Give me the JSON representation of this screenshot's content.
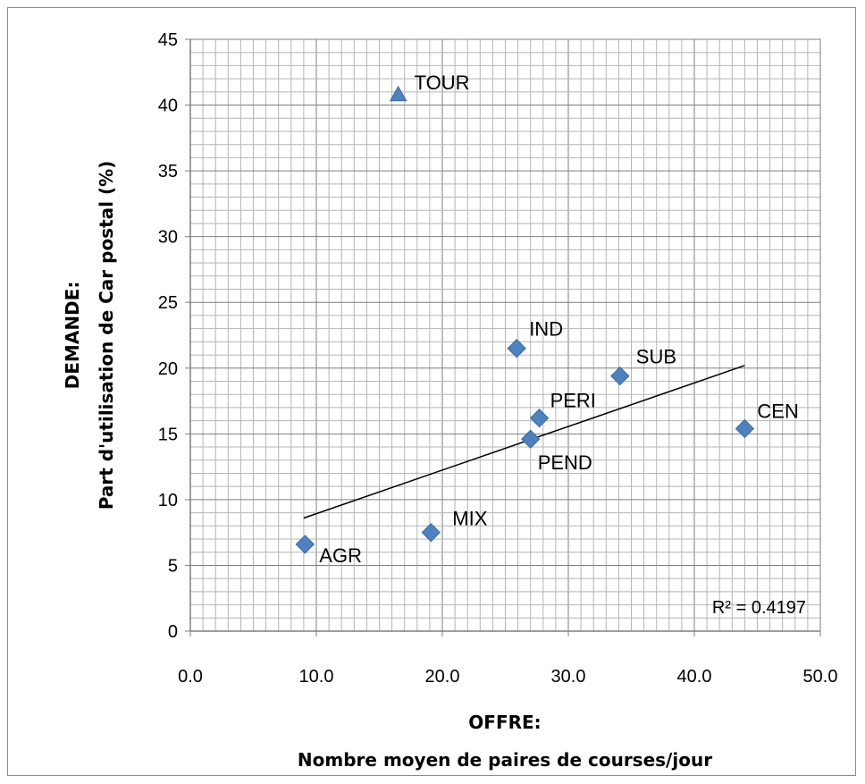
{
  "chart_data": {
    "type": "scatter",
    "xlabel_line1": "OFFRE:",
    "xlabel_line2": "Nombre moyen de paires de courses/jour",
    "ylabel_line1": "DEMANDE:",
    "ylabel_line2": "Part d'utilisation de Car postal (%)",
    "xlim": [
      0,
      50
    ],
    "ylim": [
      0,
      45
    ],
    "x_ticks": [
      "0.0",
      "10.0",
      "20.0",
      "30.0",
      "40.0",
      "50.0"
    ],
    "y_ticks": [
      "0",
      "5",
      "10",
      "15",
      "20",
      "25",
      "30",
      "35",
      "40",
      "45"
    ],
    "grid": true,
    "points": [
      {
        "label": "TOUR",
        "x": 16.5,
        "y": 40.8,
        "marker": "triangle"
      },
      {
        "label": "IND",
        "x": 25.9,
        "y": 21.5,
        "marker": "diamond"
      },
      {
        "label": "SUB",
        "x": 34.1,
        "y": 19.4,
        "marker": "diamond"
      },
      {
        "label": "PERI",
        "x": 27.7,
        "y": 16.2,
        "marker": "diamond"
      },
      {
        "label": "PEND",
        "x": 27.0,
        "y": 14.6,
        "marker": "diamond"
      },
      {
        "label": "CEN",
        "x": 44.0,
        "y": 15.4,
        "marker": "diamond"
      },
      {
        "label": "MIX",
        "x": 19.1,
        "y": 7.5,
        "marker": "diamond"
      },
      {
        "label": "AGR",
        "x": 9.1,
        "y": 6.6,
        "marker": "diamond"
      }
    ],
    "trendline": {
      "type": "linear",
      "x_start": 9.0,
      "x_end": 44.0,
      "y_start": 8.6,
      "y_end": 20.2
    },
    "r_squared_text": "R² = 0.4197",
    "marker_color": "#4f81bd"
  }
}
